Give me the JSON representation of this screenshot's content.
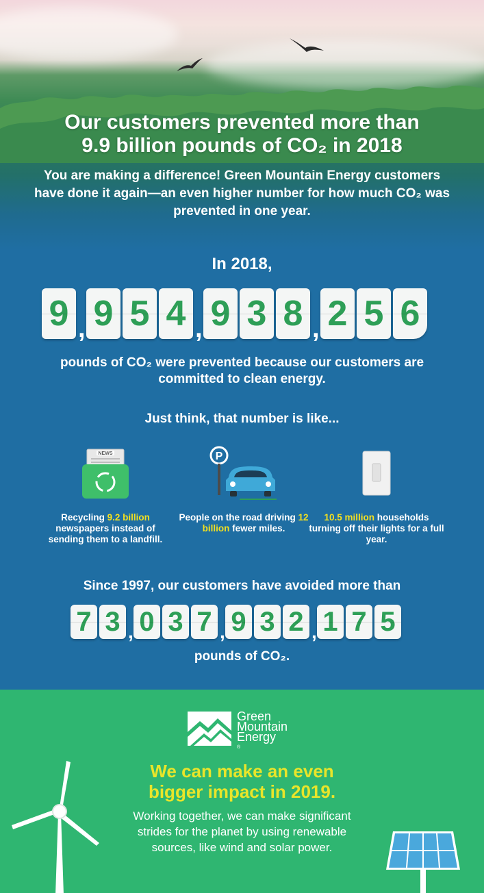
{
  "hero": {
    "headline_line1": "Our customers prevented more than",
    "headline_line2": "9.9 billion pounds of CO₂ in 2018",
    "subhead": "You are making a difference! Green Mountain Energy customers have done it again—an even higher number for how much CO₂ was prevented in one year."
  },
  "year_counter": {
    "intro": "In 2018,",
    "groups": [
      [
        "9"
      ],
      [
        "9",
        "5",
        "4"
      ],
      [
        "9",
        "3",
        "8"
      ],
      [
        "2",
        "5",
        "6"
      ]
    ],
    "caption": "pounds of CO₂ were prevented because our customers are committed to clean energy."
  },
  "think": {
    "heading": "Just think, that number is like..."
  },
  "comparisons": [
    {
      "icon": "recycling-bin-icon",
      "before": "Recycling ",
      "highlight": "9.2 billion",
      "after": " newspapers instead of sending them to a landfill.",
      "badge": "NEWS"
    },
    {
      "icon": "parked-car-icon",
      "before": "People on the road driving ",
      "highlight": "12 billion",
      "after": " fewer miles.",
      "badge": "P"
    },
    {
      "icon": "light-switch-icon",
      "before": "",
      "highlight": "10.5 million",
      "after": " households turning off their lights for a full year."
    }
  ],
  "total_counter": {
    "intro": "Since 1997, our customers have avoided more than",
    "groups": [
      [
        "7",
        "3"
      ],
      [
        "0",
        "3",
        "7"
      ],
      [
        "9",
        "3",
        "2"
      ],
      [
        "1",
        "7",
        "5"
      ]
    ],
    "caption": "pounds of CO₂."
  },
  "footer": {
    "logo_lines": [
      "Green",
      "Mountain",
      "Energy"
    ],
    "logo_mark": "®",
    "impact_line1": "We can make an even",
    "impact_line2": "bigger impact in 2019.",
    "body": "Working together, we can make significant strides for the planet by using renewable sources, like wind and solar power."
  },
  "colors": {
    "blue": "#1f6ea3",
    "green": "#2fb671",
    "digit_green": "#2e9f57",
    "highlight_yellow": "#f4e01f",
    "impact_yellow": "#e9e52a"
  }
}
